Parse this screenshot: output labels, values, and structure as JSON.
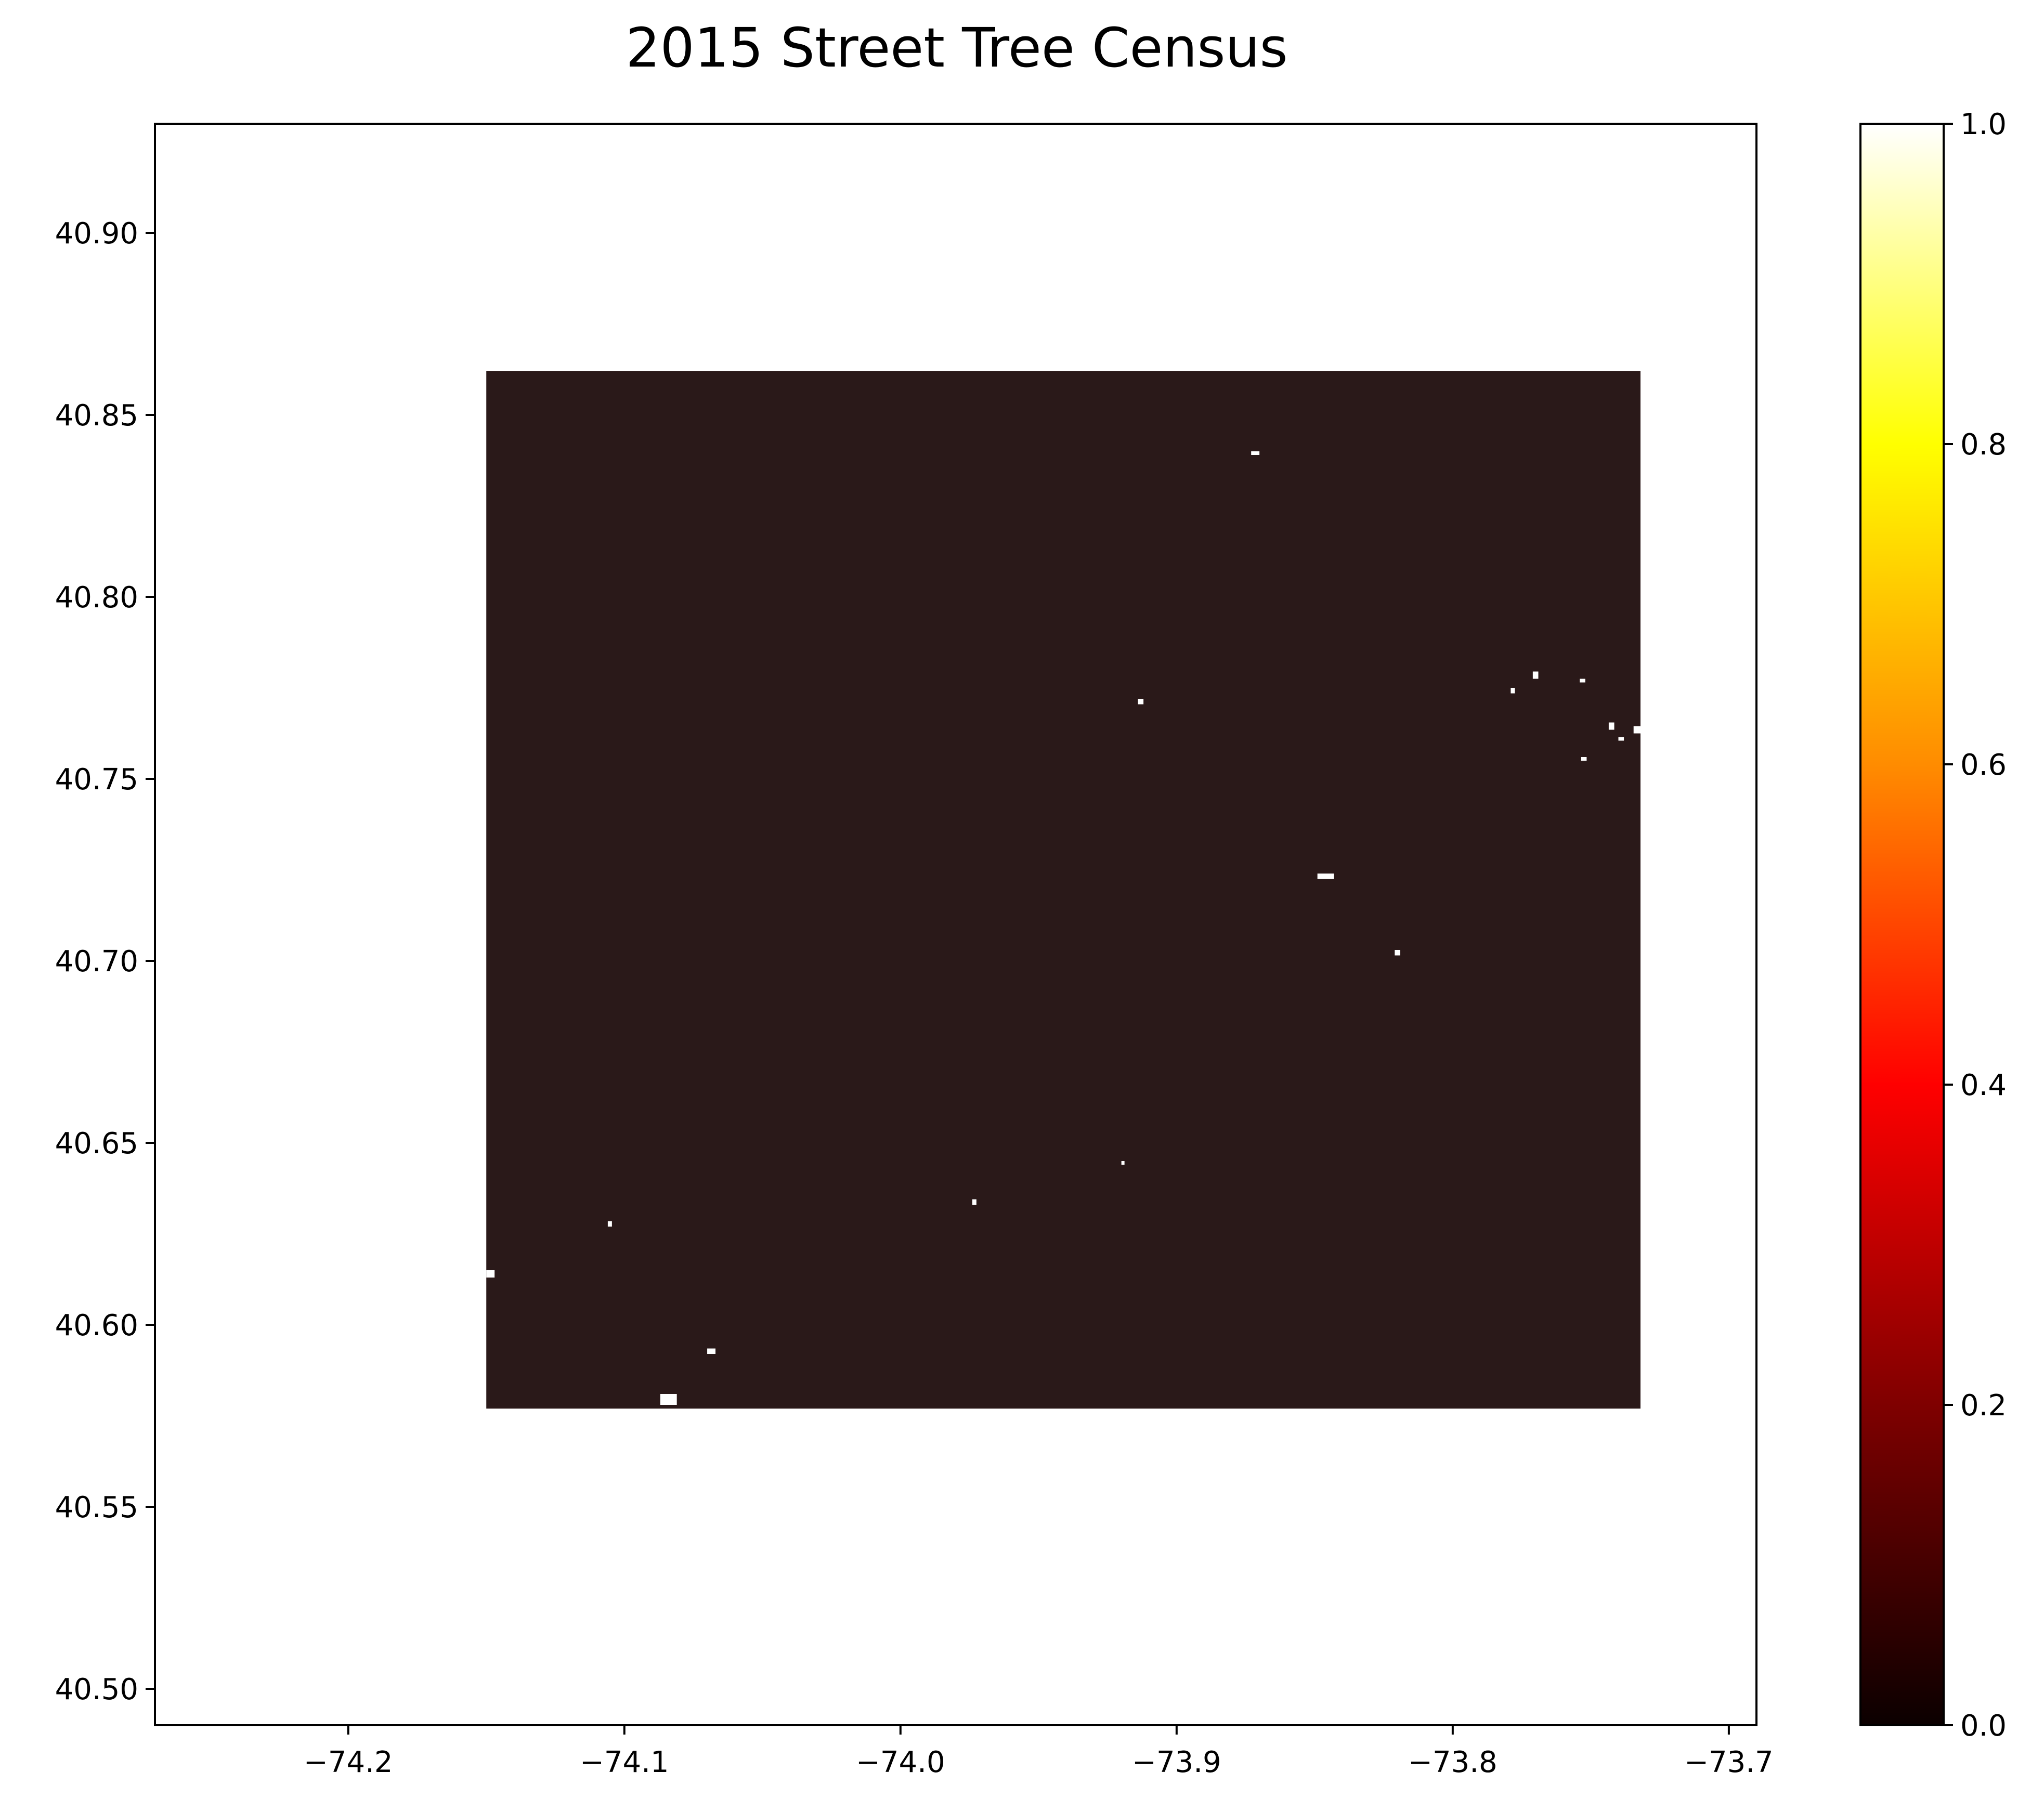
{
  "chart_data": {
    "type": "heatmap",
    "title": "2015 Street Tree Census",
    "xlabel": "",
    "ylabel": "",
    "xlim": [
      -74.27,
      -73.69
    ],
    "ylim": [
      40.49,
      40.93
    ],
    "x_ticks": [
      -74.2,
      -74.1,
      -74.0,
      -73.9,
      -73.8,
      -73.7
    ],
    "x_tick_labels": [
      "−74.2",
      "−74.1",
      "−74.0",
      "−73.9",
      "−73.8",
      "−73.7"
    ],
    "y_ticks": [
      40.5,
      40.55,
      40.6,
      40.65,
      40.7,
      40.75,
      40.8,
      40.85,
      40.9
    ],
    "y_tick_labels": [
      "40.50",
      "40.55",
      "40.60",
      "40.65",
      "40.70",
      "40.75",
      "40.80",
      "40.85",
      "40.90"
    ],
    "grid": false,
    "colormap": "hot",
    "colorbar": {
      "range": [
        0.0,
        1.0
      ],
      "ticks": [
        0.0,
        0.2,
        0.4,
        0.6,
        0.8,
        1.0
      ],
      "tick_labels": [
        "0.0",
        "0.2",
        "0.4",
        "0.6",
        "0.8",
        "1.0"
      ],
      "colors": [
        "#0b0000",
        "#7f0000",
        "#ff0000",
        "#ff8c00",
        "#ffff00",
        "#ffffff"
      ]
    },
    "data_region": {
      "x_range": [
        -74.15,
        -73.732
      ],
      "y_range": [
        40.577,
        40.862
      ],
      "value": 0.1,
      "color": "#2a1919"
    },
    "gaps": [
      {
        "x": -74.15,
        "y": 40.613,
        "w": 0.003,
        "h": 0.002
      },
      {
        "x": -74.087,
        "y": 40.578,
        "w": 0.006,
        "h": 0.003
      },
      {
        "x": -74.07,
        "y": 40.592,
        "w": 0.003,
        "h": 0.0015
      },
      {
        "x": -74.106,
        "y": 40.627,
        "w": 0.0015,
        "h": 0.0015
      },
      {
        "x": -73.974,
        "y": 40.633,
        "w": 0.0015,
        "h": 0.0015
      },
      {
        "x": -73.92,
        "y": 40.644,
        "w": 0.001,
        "h": 0.001
      },
      {
        "x": -73.914,
        "y": 40.7705,
        "w": 0.002,
        "h": 0.0015
      },
      {
        "x": -73.873,
        "y": 40.839,
        "w": 0.003,
        "h": 0.001
      },
      {
        "x": -73.893,
        "y": 40.862,
        "w": 0.001,
        "h": 0.001
      },
      {
        "x": -73.849,
        "y": 40.7225,
        "w": 0.006,
        "h": 0.0015
      },
      {
        "x": -73.821,
        "y": 40.7015,
        "w": 0.002,
        "h": 0.0015
      },
      {
        "x": -73.779,
        "y": 40.7735,
        "w": 0.0015,
        "h": 0.0015
      },
      {
        "x": -73.771,
        "y": 40.7775,
        "w": 0.002,
        "h": 0.002
      },
      {
        "x": -73.754,
        "y": 40.7765,
        "w": 0.002,
        "h": 0.001
      },
      {
        "x": -73.7535,
        "y": 40.755,
        "w": 0.002,
        "h": 0.001
      },
      {
        "x": -73.7435,
        "y": 40.7635,
        "w": 0.002,
        "h": 0.002
      },
      {
        "x": -73.74,
        "y": 40.7605,
        "w": 0.002,
        "h": 0.001
      },
      {
        "x": -73.7345,
        "y": 40.7625,
        "w": 0.003,
        "h": 0.002
      }
    ]
  }
}
